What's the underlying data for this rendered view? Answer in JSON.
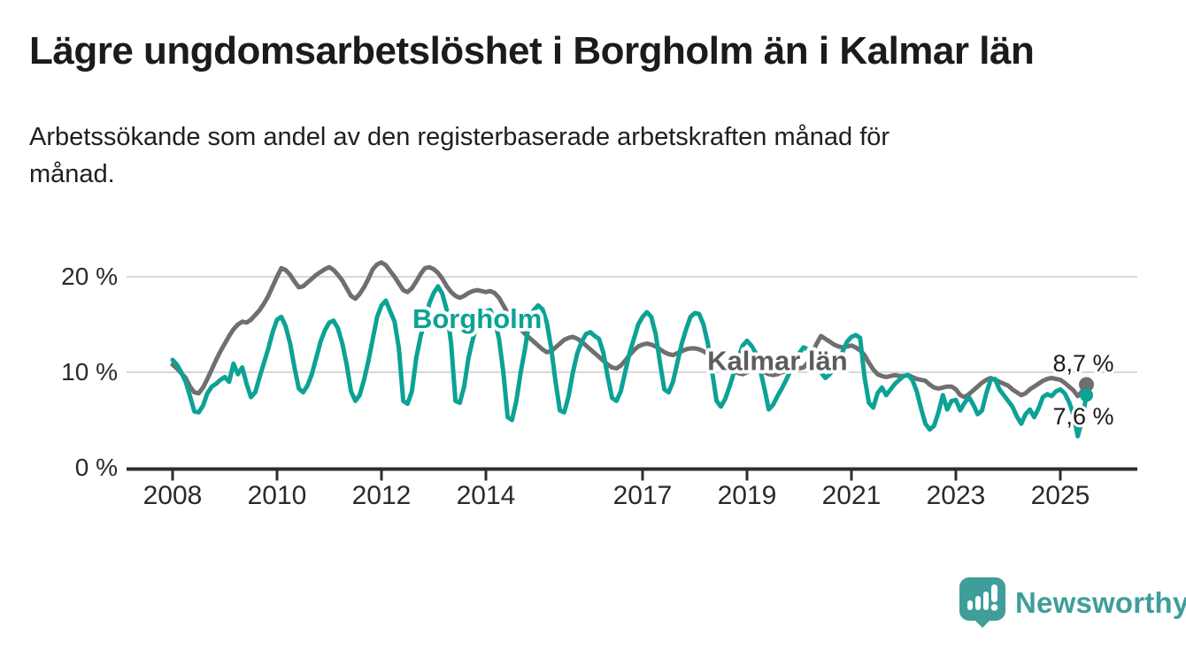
{
  "header": {
    "title": "Lägre ungdomsarbetslöshet i Borgholm än i Kalmar län",
    "subtitle_lines": [
      "Arbetssökande som andel av den registerbaserade arbetskraften månad för",
      "månad."
    ]
  },
  "chart_data": {
    "type": "line",
    "unit": "%",
    "frequency": "monthly",
    "start": {
      "year": 2008,
      "month": 1
    },
    "end": {
      "year": 2025,
      "month": 7
    },
    "grid": "horizontal",
    "legend_position": "inline-labels",
    "x_tick_years": [
      2008,
      2010,
      2012,
      2014,
      2017,
      2019,
      2021,
      2023,
      2025
    ],
    "y_ticks": [
      {
        "value": 0,
        "label": "0 %"
      },
      {
        "value": 10,
        "label": "10 %"
      },
      {
        "value": 20,
        "label": "20 %"
      }
    ],
    "ylim": [
      0,
      22.5
    ],
    "series": [
      {
        "name": "Kalmar län",
        "color": "#6f6f6f",
        "label_color": "#5d5d5f",
        "end_value": 8.7,
        "end_label": "8,7 %",
        "end_label_position": "above",
        "label_anchor": {
          "month_index": 139,
          "value": 11.0
        },
        "values": [
          10.8,
          10.4,
          9.9,
          9.4,
          8.5,
          7.9,
          7.8,
          8.4,
          9.3,
          10.3,
          11.3,
          12.2,
          13.0,
          13.8,
          14.5,
          15.0,
          15.3,
          15.2,
          15.5,
          16.0,
          16.5,
          17.2,
          18.0,
          19.0,
          20.0,
          20.9,
          20.7,
          20.2,
          19.5,
          18.9,
          19.0,
          19.4,
          19.8,
          20.2,
          20.5,
          20.8,
          21.0,
          20.7,
          20.2,
          19.6,
          18.8,
          18.0,
          17.7,
          18.2,
          18.9,
          19.8,
          20.8,
          21.3,
          21.5,
          21.2,
          20.6,
          20.0,
          19.3,
          18.6,
          18.4,
          18.8,
          19.5,
          20.3,
          20.9,
          21.0,
          20.8,
          20.4,
          19.8,
          19.0,
          18.4,
          18.0,
          17.8,
          18.0,
          18.3,
          18.5,
          18.6,
          18.5,
          18.4,
          18.5,
          18.3,
          17.8,
          17.0,
          16.2,
          15.5,
          15.0,
          14.5,
          14.0,
          13.6,
          13.2,
          12.8,
          12.4,
          12.1,
          12.2,
          12.6,
          13.0,
          13.4,
          13.6,
          13.7,
          13.5,
          13.2,
          12.8,
          12.4,
          12.0,
          11.6,
          11.2,
          10.8,
          10.5,
          10.4,
          10.7,
          11.2,
          11.8,
          12.3,
          12.7,
          12.9,
          13.0,
          12.9,
          12.7,
          12.4,
          12.1,
          11.9,
          11.8,
          12.0,
          12.2,
          12.4,
          12.5,
          12.5,
          12.4,
          12.2,
          11.9,
          11.5,
          11.2,
          10.9,
          10.7,
          10.4,
          10.2,
          9.9,
          9.8,
          10.0,
          10.2,
          10.3,
          10.2,
          10.0,
          9.8,
          9.7,
          9.8,
          10.0,
          10.1,
          10.2,
          10.3,
          10.4,
          10.5,
          11.0,
          12.0,
          13.0,
          13.8,
          13.5,
          13.2,
          12.9,
          12.7,
          12.6,
          12.7,
          12.8,
          12.6,
          12.3,
          11.8,
          11.0,
          10.3,
          9.8,
          9.6,
          9.5,
          9.6,
          9.7,
          9.6,
          9.6,
          9.7,
          9.5,
          9.3,
          9.2,
          9.1,
          8.7,
          8.4,
          8.3,
          8.4,
          8.5,
          8.5,
          8.2,
          7.6,
          7.4,
          7.7,
          8.1,
          8.5,
          8.9,
          9.2,
          9.4,
          9.2,
          9.0,
          8.8,
          8.6,
          8.2,
          7.9,
          7.6,
          7.8,
          8.2,
          8.5,
          8.8,
          9.1,
          9.3,
          9.4,
          9.3,
          9.2,
          8.9,
          8.5,
          8.1,
          7.5,
          8.0,
          8.7
        ]
      },
      {
        "name": "Borgholm",
        "color": "#0ca295",
        "label_color": "#0ca295",
        "end_value": 7.6,
        "end_label": "7,6 %",
        "end_label_position": "below",
        "label_anchor": {
          "month_index": 70,
          "value": 15.4
        },
        "values": [
          11.3,
          10.8,
          10.0,
          9.0,
          7.5,
          5.9,
          5.8,
          6.5,
          7.8,
          8.5,
          8.8,
          9.2,
          9.5,
          9.0,
          10.9,
          9.8,
          10.5,
          8.8,
          7.4,
          7.9,
          9.5,
          11.0,
          12.5,
          14.2,
          15.5,
          15.8,
          14.8,
          13.0,
          10.5,
          8.3,
          7.9,
          8.6,
          9.8,
          11.5,
          13.2,
          14.4,
          15.2,
          15.4,
          14.6,
          13.0,
          10.8,
          8.0,
          7.0,
          7.6,
          9.2,
          11.2,
          13.5,
          15.8,
          17.0,
          17.5,
          16.4,
          15.3,
          12.5,
          7.0,
          6.7,
          8.0,
          11.5,
          13.8,
          15.3,
          17.2,
          18.3,
          19.0,
          18.2,
          16.5,
          13.0,
          7.0,
          6.8,
          8.5,
          11.5,
          13.5,
          15.0,
          16.0,
          16.4,
          16.5,
          15.5,
          13.5,
          10.0,
          5.3,
          5.0,
          7.0,
          10.0,
          12.5,
          15.5,
          16.5,
          17.0,
          16.6,
          15.2,
          12.5,
          9.0,
          6.0,
          5.8,
          7.5,
          10.0,
          12.0,
          13.2,
          14.0,
          14.2,
          13.8,
          13.5,
          12.0,
          9.5,
          7.3,
          7.0,
          8.0,
          10.0,
          12.0,
          13.5,
          15.0,
          15.8,
          16.3,
          15.8,
          14.0,
          11.0,
          8.2,
          7.9,
          9.0,
          11.0,
          13.0,
          14.5,
          15.8,
          16.2,
          16.1,
          15.0,
          13.0,
          10.0,
          7.0,
          6.4,
          7.2,
          8.5,
          10.0,
          11.5,
          12.8,
          13.3,
          12.8,
          12.0,
          10.3,
          8.3,
          6.1,
          6.6,
          7.5,
          8.3,
          9.2,
          10.2,
          11.3,
          12.0,
          12.6,
          12.4,
          11.6,
          10.8,
          10.0,
          9.4,
          9.8,
          10.3,
          11.0,
          12.2,
          13.2,
          13.7,
          13.9,
          13.6,
          9.5,
          6.8,
          6.3,
          7.8,
          8.4,
          7.6,
          8.2,
          8.8,
          9.2,
          9.6,
          9.7,
          9.2,
          8.0,
          6.2,
          4.6,
          4.0,
          4.4,
          5.8,
          7.6,
          6.1,
          7.0,
          7.1,
          6.0,
          6.8,
          7.4,
          6.6,
          5.6,
          6.0,
          7.8,
          9.2,
          9.3,
          8.2,
          7.6,
          7.0,
          6.4,
          5.4,
          4.6,
          5.6,
          6.1,
          5.3,
          6.2,
          7.4,
          7.7,
          7.5,
          8.0,
          8.2,
          7.8,
          6.9,
          5.6,
          3.3,
          5.0,
          7.6
        ]
      }
    ]
  },
  "footer": {
    "brand": "Newsworthy"
  },
  "colors": {
    "accent_teal": "#0ca295",
    "line_gray": "#6f6f6f",
    "logo_teal": "#3f9e9a",
    "axis": "#2e2e2e",
    "gridline": "#d8d8d8",
    "text_dark": "#1b1b1b"
  }
}
